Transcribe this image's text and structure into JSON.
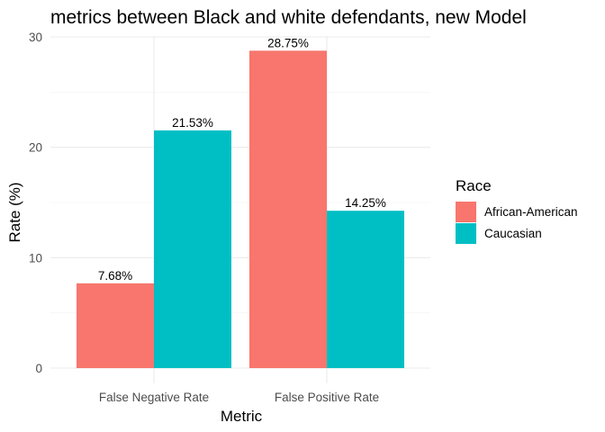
{
  "chart_data": {
    "type": "bar",
    "title": "metrics between Black and white defendants, new Model",
    "xlabel": "Metric",
    "ylabel": "Rate (%)",
    "categories": [
      "False Negative Rate",
      "False Positive Rate"
    ],
    "series": [
      {
        "name": "African-American",
        "color": "#F8766D",
        "values": [
          7.68,
          28.75
        ],
        "labels": [
          "7.68%",
          "28.75%"
        ]
      },
      {
        "name": "Caucasian",
        "color": "#00BFC4",
        "values": [
          21.53,
          14.25
        ],
        "labels": [
          "21.53%",
          "14.25%"
        ]
      }
    ],
    "ylim": [
      0,
      30
    ],
    "yticks": [
      0,
      10,
      20,
      30
    ],
    "grid": true,
    "legend": {
      "title": "Race",
      "position": "right"
    }
  }
}
